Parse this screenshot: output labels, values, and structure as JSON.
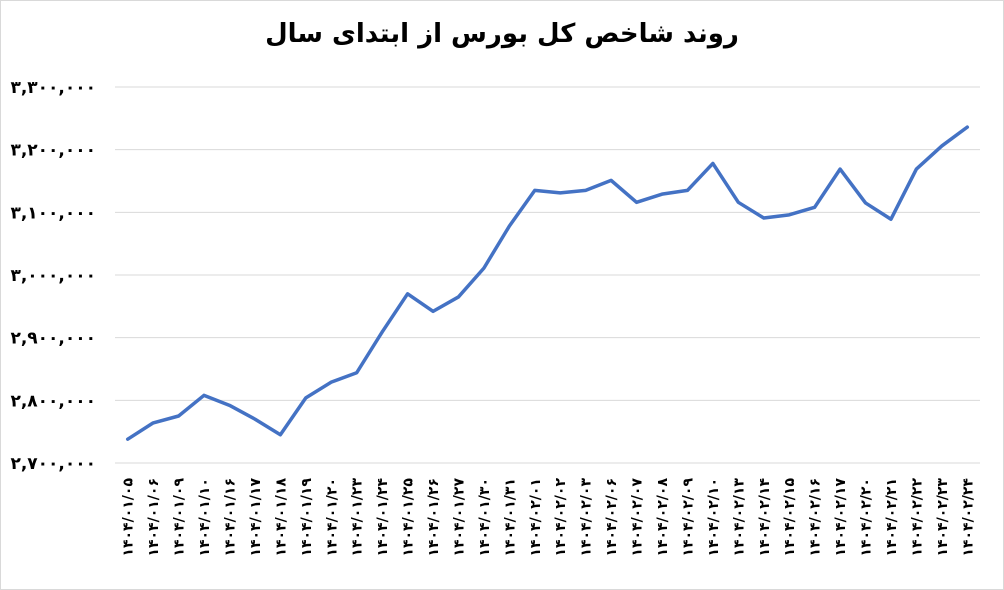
{
  "chart_data": {
    "type": "line",
    "title": "روند شاخص کل بورس از ابتدای سال",
    "categories": [
      "۱۴۰۴/۰۱/۰۵",
      "۱۴۰۴/۰۱/۰۶",
      "۱۴۰۴/۰۱/۰۹",
      "۱۴۰۴/۰۱/۱۰",
      "۱۴۰۴/۰۱/۱۶",
      "۱۴۰۴/۰۱/۱۷",
      "۱۴۰۴/۰۱/۱۸",
      "۱۴۰۴/۰۱/۱۹",
      "۱۴۰۴/۰۱/۲۰",
      "۱۴۰۴/۰۱/۲۳",
      "۱۴۰۴/۰۱/۲۴",
      "۱۴۰۴/۰۱/۲۵",
      "۱۴۰۴/۰۱/۲۶",
      "۱۴۰۴/۰۱/۲۷",
      "۱۴۰۴/۰۱/۳۰",
      "۱۴۰۴/۰۱/۳۱",
      "۱۴۰۴/۰۲/۰۱",
      "۱۴۰۴/۰۲/۰۲",
      "۱۴۰۴/۰۲/۰۳",
      "۱۴۰۴/۰۲/۰۶",
      "۱۴۰۴/۰۲/۰۷",
      "۱۴۰۴/۰۲/۰۸",
      "۱۴۰۴/۰۲/۰۹",
      "۱۴۰۴/۰۲/۱۰",
      "۱۴۰۴/۰۲/۱۳",
      "۱۴۰۴/۰۲/۱۴",
      "۱۴۰۴/۰۲/۱۵",
      "۱۴۰۴/۰۲/۱۶",
      "۱۴۰۴/۰۲/۱۷",
      "۱۴۰۴/۰۲/۲۰",
      "۱۴۰۴/۰۲/۲۱",
      "۱۴۰۴/۰۲/۲۲",
      "۱۴۰۴/۰۲/۲۳",
      "۱۴۰۴/۰۲/۲۴"
    ],
    "values": [
      2738000,
      2764000,
      2775000,
      2808000,
      2792000,
      2770000,
      2745000,
      2804000,
      2829000,
      2844000,
      2909000,
      2970000,
      2942000,
      2965000,
      3011000,
      3078000,
      3135000,
      3131000,
      3135000,
      3151000,
      3116000,
      3129000,
      3135000,
      3178000,
      3116000,
      3091000,
      3096000,
      3108000,
      3169000,
      3115000,
      3089000,
      3169000,
      3206000,
      3236000
    ],
    "color": "#4472c4",
    "ylim": [
      2700000,
      3300000
    ],
    "yticks": [
      {
        "value": 2700000,
        "label": "۲,۷۰۰,۰۰۰"
      },
      {
        "value": 2800000,
        "label": "۲,۸۰۰,۰۰۰"
      },
      {
        "value": 2900000,
        "label": "۲,۹۰۰,۰۰۰"
      },
      {
        "value": 3000000,
        "label": "۳,۰۰۰,۰۰۰"
      },
      {
        "value": 3100000,
        "label": "۳,۱۰۰,۰۰۰"
      },
      {
        "value": 3200000,
        "label": "۳,۲۰۰,۰۰۰"
      },
      {
        "value": 3300000,
        "label": "۳,۳۰۰,۰۰۰"
      }
    ],
    "grid": true
  }
}
